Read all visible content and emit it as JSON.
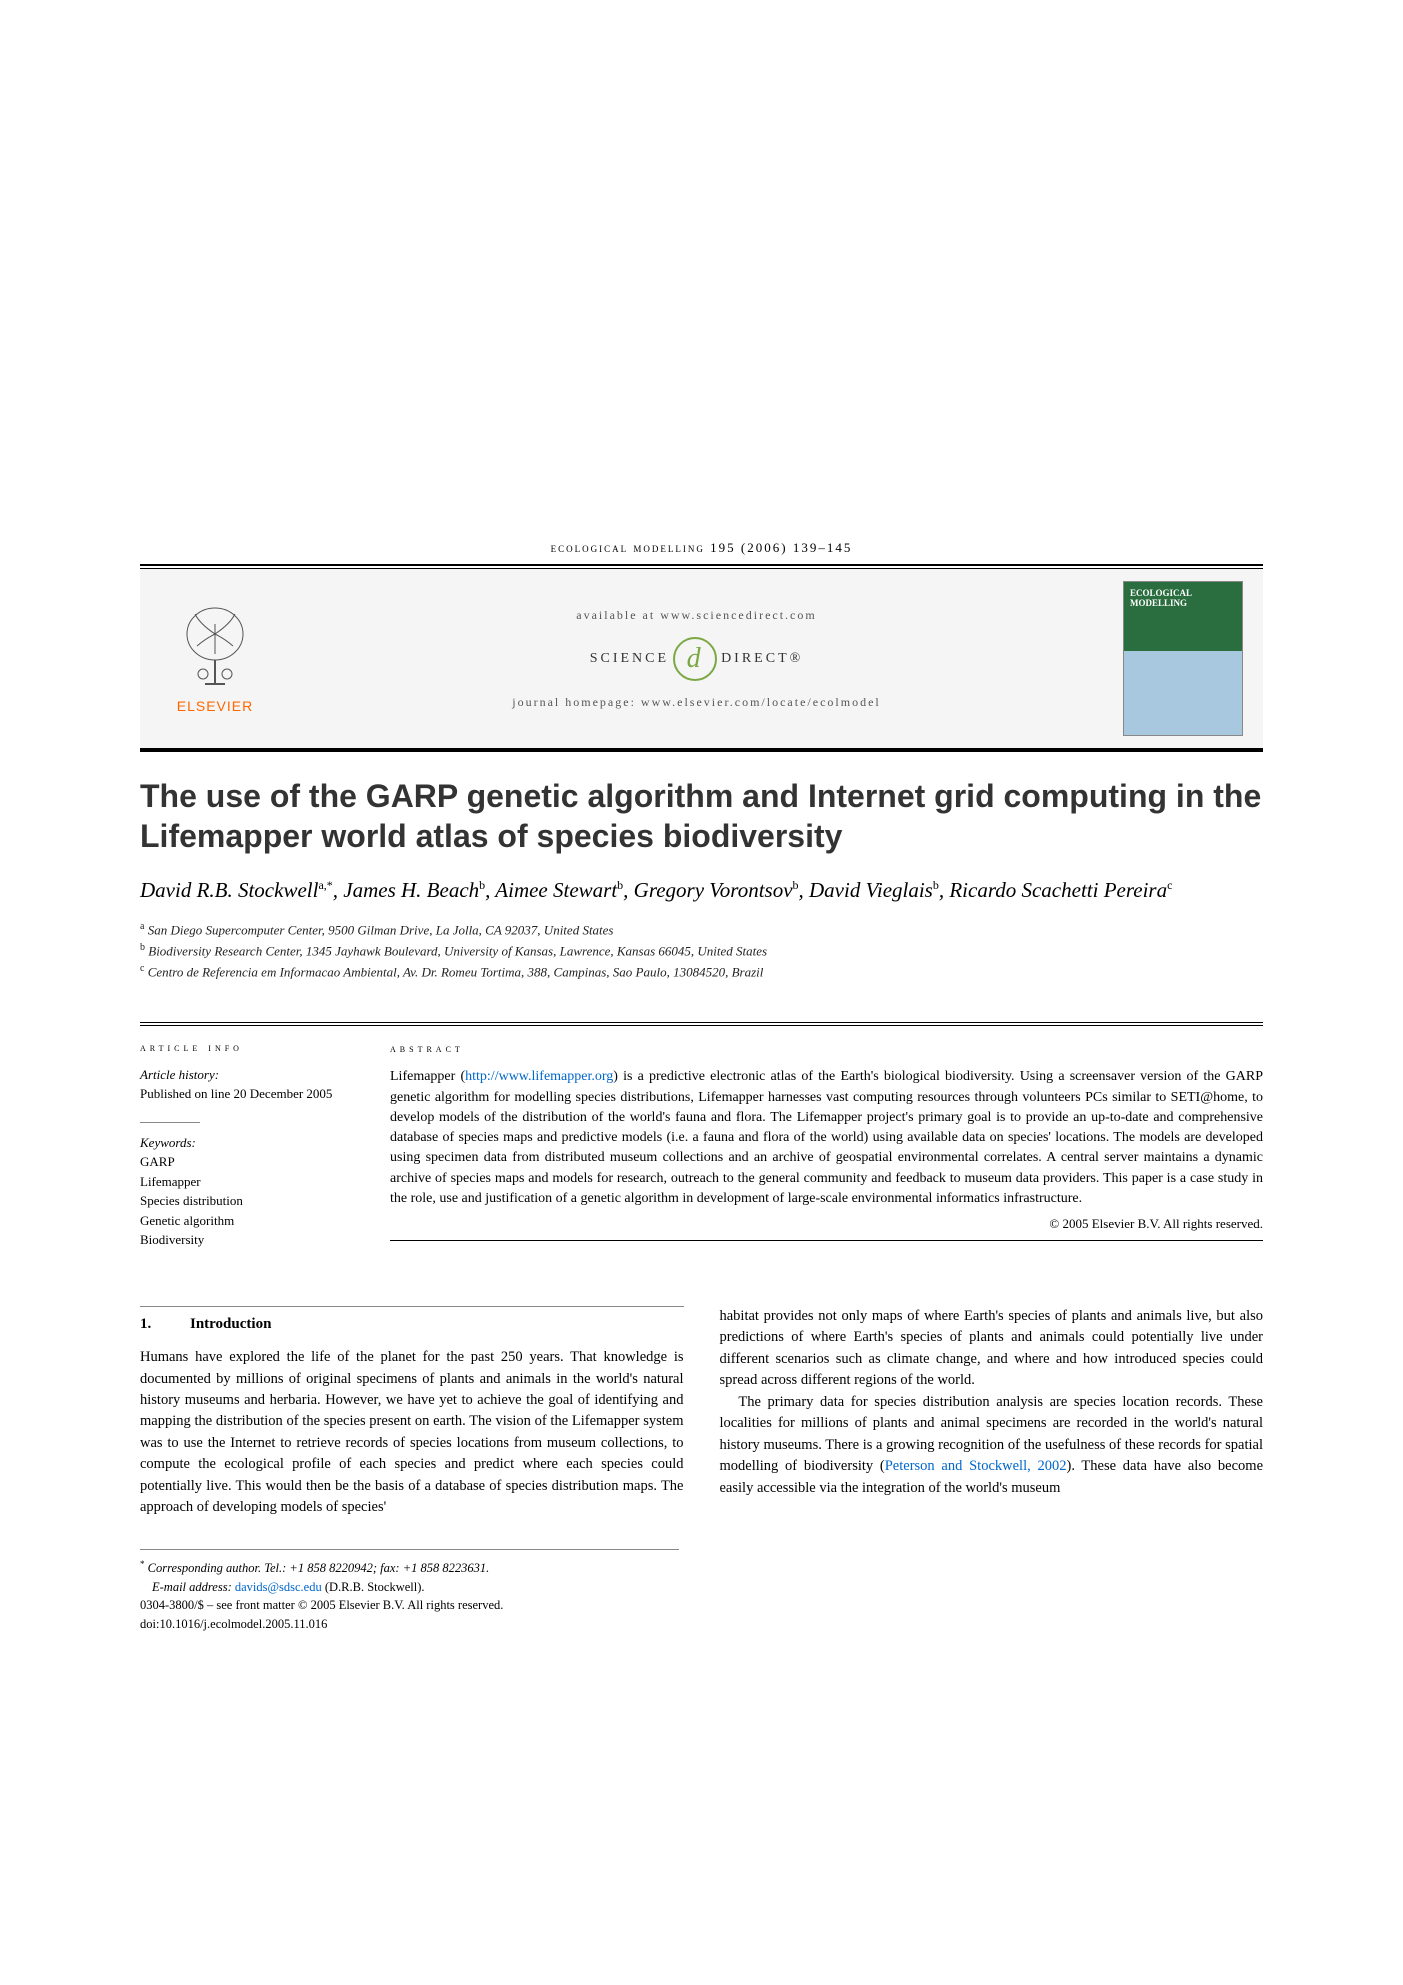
{
  "journal_header": "ecological modelling 195 (2006) 139–145",
  "header": {
    "elsevier": "ELSEVIER",
    "available": "available at www.sciencedirect.com",
    "science": "SCIENCE",
    "direct": "DIRECT®",
    "homepage": "journal homepage: www.elsevier.com/locate/ecolmodel",
    "cover_title": "ECOLOGICAL MODELLING"
  },
  "title": "The use of the GARP genetic algorithm and Internet grid computing in the Lifemapper world atlas of species biodiversity",
  "authors_html": "David R.B. Stockwell<sup>a,*</sup>, James H. Beach<sup>b</sup>, Aimee Stewart<sup>b</sup>, Gregory Vorontsov<sup>b</sup>, David Vieglais<sup>b</sup>, Ricardo Scachetti Pereira<sup>c</sup>",
  "affiliations": {
    "a": "San Diego Supercomputer Center, 9500 Gilman Drive, La Jolla, CA 92037, United States",
    "b": "Biodiversity Research Center, 1345 Jayhawk Boulevard, University of Kansas, Lawrence, Kansas 66045, United States",
    "c": "Centro de Referencia em Informacao Ambiental, Av. Dr. Romeu Tortima, 388, Campinas, Sao Paulo, 13084520, Brazil"
  },
  "info": {
    "label": "article info",
    "history_label": "Article history:",
    "history": "Published on line 20 December 2005",
    "keywords_label": "Keywords:",
    "keywords": [
      "GARP",
      "Lifemapper",
      "Species distribution",
      "Genetic algorithm",
      "Biodiversity"
    ]
  },
  "abstract": {
    "label": "abstract",
    "text_pre": "Lifemapper (",
    "link": "http://www.lifemapper.org",
    "text_post": ") is a predictive electronic atlas of the Earth's biological biodiversity. Using a screensaver version of the GARP genetic algorithm for modelling species distributions, Lifemapper harnesses vast computing resources through volunteers PCs similar to SETI@home, to develop models of the distribution of the world's fauna and flora. The Lifemapper project's primary goal is to provide an up-to-date and comprehensive database of species maps and predictive models (i.e. a fauna and flora of the world) using available data on species' locations. The models are developed using specimen data from distributed museum collections and an archive of geospatial environmental correlates. A central server maintains a dynamic archive of species maps and models for research, outreach to the general community and feedback to museum data providers. This paper is a case study in the role, use and justification of a genetic algorithm in development of large-scale environmental informatics infrastructure.",
    "copyright": "© 2005 Elsevier B.V. All rights reserved."
  },
  "body": {
    "section_num": "1.",
    "section_title": "Introduction",
    "col1_p1": "Humans have explored the life of the planet for the past 250 years. That knowledge is documented by millions of original specimens of plants and animals in the world's natural history museums and herbaria. However, we have yet to achieve the goal of identifying and mapping the distribution of the species present on earth. The vision of the Lifemapper system was to use the Internet to retrieve records of species locations from museum collections, to compute the ecological profile of each species and predict where each species could potentially live. This would then be the basis of a database of species distribution maps. The approach of developing models of species'",
    "col2_p1": "habitat provides not only maps of where Earth's species of plants and animals live, but also predictions of where Earth's species of plants and animals could potentially live under different scenarios such as climate change, and where and how introduced species could spread across different regions of the world.",
    "col2_p2_pre": "The primary data for species distribution analysis are species location records. These localities for millions of plants and animal specimens are recorded in the world's natural history museums. There is a growing recognition of the usefulness of these records for spatial modelling of biodiversity (",
    "col2_cite": "Peterson and Stockwell, 2002",
    "col2_p2_post": "). These data have also become easily accessible via the integration of the world's museum"
  },
  "footer": {
    "corresponding": "Corresponding author. Tel.: +1 858 8220942; fax: +1 858 8223631.",
    "email_label": "E-mail address:",
    "email": "davids@sdsc.edu",
    "email_name": "(D.R.B. Stockwell).",
    "issn": "0304-3800/$ – see front matter © 2005 Elsevier B.V. All rights reserved.",
    "doi": "doi:10.1016/j.ecolmodel.2005.11.016"
  },
  "colors": {
    "elsevier_orange": "#ff6600",
    "sd_green": "#7ba843",
    "link_blue": "#0066cc",
    "cover_green": "#2a6e3f",
    "title_gray": "#333333"
  }
}
